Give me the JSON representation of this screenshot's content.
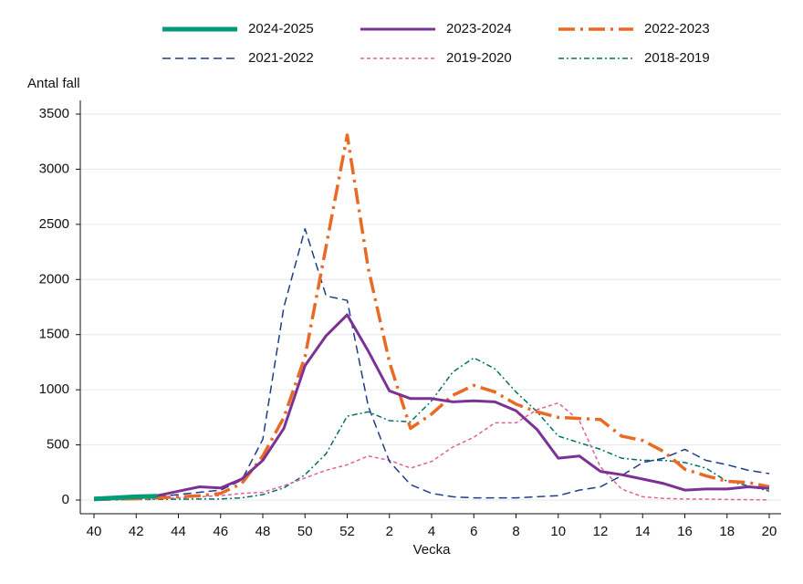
{
  "chart_data": {
    "type": "line",
    "y_label": "Antal fall",
    "x_label": "Vecka",
    "categories": [
      40,
      null,
      42,
      null,
      44,
      null,
      46,
      null,
      48,
      null,
      50,
      null,
      52,
      null,
      2,
      null,
      4,
      null,
      6,
      null,
      8,
      null,
      10,
      null,
      12,
      null,
      14,
      null,
      16,
      null,
      18,
      null,
      20
    ],
    "ylim": [
      0,
      3500
    ],
    "yticks": [
      0,
      500,
      1000,
      1500,
      2000,
      2500,
      3000,
      3500
    ],
    "grid": true,
    "legend": "top",
    "series": [
      {
        "name": "2024-2025",
        "color": "#009b77",
        "width": 5,
        "dash": "none",
        "values": [
          10,
          20,
          30,
          35,
          null,
          null,
          null,
          null,
          null,
          null,
          null,
          null,
          null,
          null,
          null,
          null,
          null,
          null,
          null,
          null,
          null,
          null,
          null,
          null,
          null,
          null,
          null,
          null,
          null,
          null,
          null,
          null,
          null
        ]
      },
      {
        "name": "2023-2024",
        "color": "#7b3294",
        "width": 3,
        "dash": "none",
        "values": [
          10,
          15,
          25,
          40,
          80,
          120,
          110,
          190,
          360,
          650,
          1220,
          1490,
          1680,
          1350,
          990,
          920,
          920,
          890,
          900,
          890,
          810,
          640,
          380,
          400,
          260,
          230,
          190,
          150,
          90,
          100,
          100,
          120,
          105
        ]
      },
      {
        "name": "2022-2023",
        "color": "#e86a24",
        "width": 3.5,
        "dash": "18 6 3 6",
        "values": [
          5,
          8,
          12,
          20,
          30,
          40,
          60,
          150,
          400,
          750,
          1300,
          2300,
          3310,
          2100,
          1250,
          650,
          780,
          950,
          1040,
          980,
          870,
          800,
          750,
          740,
          730,
          580,
          540,
          440,
          280,
          220,
          170,
          160,
          120
        ]
      },
      {
        "name": "2021-2022",
        "color": "#1f3c88",
        "width": 1.5,
        "dash": "9 5",
        "values": [
          5,
          10,
          15,
          30,
          50,
          70,
          90,
          180,
          550,
          1750,
          2460,
          1850,
          1810,
          850,
          350,
          140,
          60,
          30,
          20,
          20,
          20,
          30,
          40,
          90,
          120,
          220,
          340,
          380,
          460,
          360,
          320,
          270,
          240
        ]
      },
      {
        "name": "2019-2020",
        "color": "#e0609a",
        "width": 1.5,
        "dash": "4 3",
        "values": [
          5,
          6,
          8,
          10,
          20,
          30,
          40,
          60,
          70,
          130,
          200,
          270,
          320,
          400,
          360,
          290,
          350,
          480,
          570,
          700,
          700,
          820,
          880,
          720,
          300,
          100,
          30,
          15,
          10,
          8,
          5,
          3,
          2
        ]
      },
      {
        "name": "2018-2019",
        "color": "#00706b",
        "width": 1.5,
        "dash": "6 3 2 3",
        "values": [
          3,
          4,
          5,
          6,
          8,
          9,
          10,
          20,
          50,
          110,
          230,
          420,
          760,
          800,
          720,
          710,
          900,
          1160,
          1290,
          1190,
          980,
          800,
          580,
          520,
          460,
          380,
          360,
          360,
          340,
          290,
          170,
          130,
          80
        ]
      }
    ]
  }
}
